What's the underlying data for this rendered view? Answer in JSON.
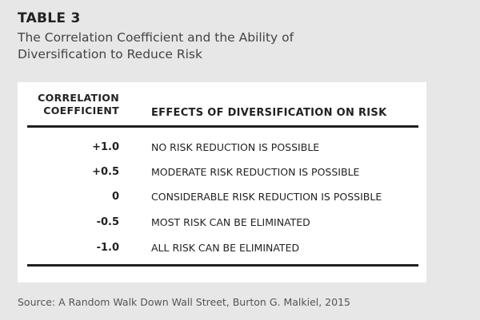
{
  "table_label": "TABLE 3",
  "subtitle": "The Correlation Coefficient and the Ability of Diversification to Reduce Risk",
  "table": {
    "headers": {
      "coefficient_line1": "CORRELATION",
      "coefficient_line2": "COEFFICIENT",
      "effects": "EFFECTS OF DIVERSIFICATION ON RISK"
    },
    "rows": [
      {
        "coefficient": "+1.0",
        "effect": "NO RISK REDUCTION IS POSSIBLE"
      },
      {
        "coefficient": "+0.5",
        "effect": "MODERATE RISK REDUCTION IS POSSIBLE"
      },
      {
        "coefficient": "0",
        "effect": "CONSIDERABLE RISK REDUCTION IS POSSIBLE"
      },
      {
        "coefficient": "-0.5",
        "effect": "MOST RISK CAN BE ELIMINATED"
      },
      {
        "coefficient": "-1.0",
        "effect": "ALL RISK CAN BE ELIMINATED"
      }
    ]
  },
  "source": "Source: A Random Walk Down Wall Street, Burton G. Malkiel, 2015",
  "colors": {
    "page_background": "#e7e7e8",
    "card_background": "#ffffff",
    "text": "#222222",
    "rule": "#1f1f1f"
  }
}
